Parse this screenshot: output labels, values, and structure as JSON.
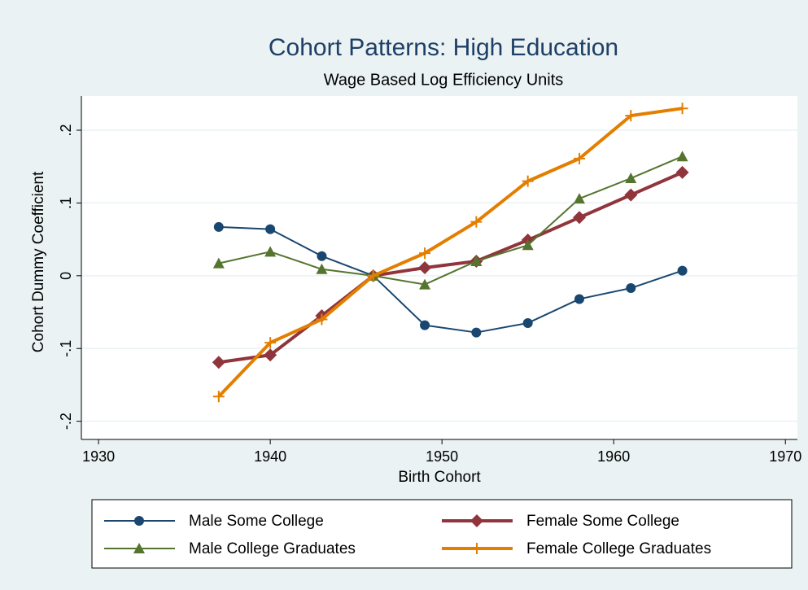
{
  "chart_data": {
    "type": "line",
    "title": "Cohort Patterns: High Education",
    "subtitle": "Wage Based Log Efficiency Units",
    "x_label": "Birth Cohort",
    "y_label": "Cohort Dummy Coefficient",
    "x": [
      1937,
      1940,
      1943,
      1946,
      1949,
      1952,
      1955,
      1958,
      1961,
      1964
    ],
    "series": [
      {
        "name": "Male Some College",
        "color": "#1a476f",
        "marker": "circle",
        "width": 2,
        "values": [
          0.067,
          0.064,
          0.027,
          0,
          -0.068,
          -0.078,
          -0.065,
          -0.032,
          -0.017,
          0.007
        ]
      },
      {
        "name": "Female Some College",
        "color": "#90353b",
        "marker": "diamond",
        "width": 4,
        "values": [
          -0.119,
          -0.109,
          -0.055,
          0,
          0.011,
          0.02,
          0.049,
          0.08,
          0.111,
          0.142
        ]
      },
      {
        "name": "Male College Graduates",
        "color": "#55752f",
        "marker": "triangle",
        "width": 2,
        "values": [
          0.017,
          0.033,
          0.009,
          0,
          -0.012,
          0.02,
          0.042,
          0.106,
          0.134,
          0.164
        ]
      },
      {
        "name": "Female College Graduates",
        "color": "#e37e00",
        "marker": "plus",
        "width": 4,
        "values": [
          -0.166,
          -0.092,
          -0.06,
          0,
          0.031,
          0.074,
          0.13,
          0.161,
          0.22,
          0.23
        ]
      }
    ],
    "xlim": [
      1929,
      1970.7
    ],
    "ylim": [
      -0.225,
      0.247
    ],
    "xticks": [
      1930,
      1940,
      1950,
      1960,
      1970
    ],
    "yticks": [
      {
        "value": -0.2,
        "label": "-.2"
      },
      {
        "value": -0.1,
        "label": "-.1"
      },
      0,
      {
        "value": 0.1,
        "label": ".1"
      },
      {
        "value": 0.2,
        "label": ".2"
      }
    ],
    "grid": true,
    "legend": "bottom"
  }
}
